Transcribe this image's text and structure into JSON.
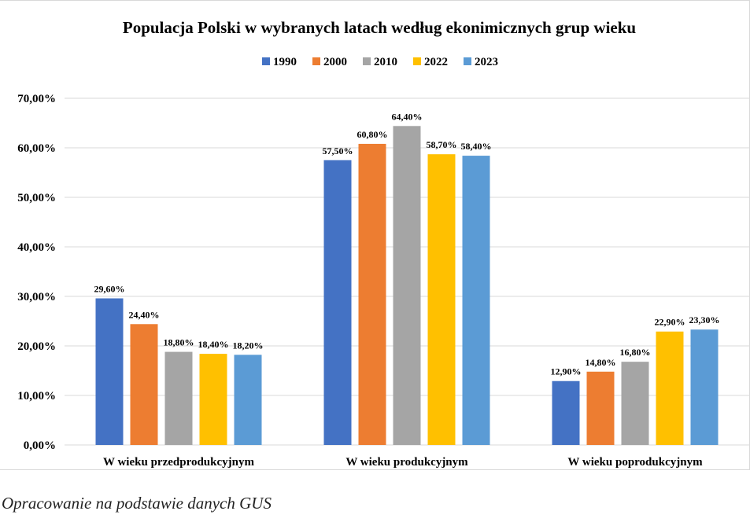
{
  "chart_data": {
    "type": "bar",
    "title": "Populacja Polski w wybranych latach według ekonimicznych grup wieku",
    "categories": [
      "W wieku przedprodukcyjnym",
      "W wieku produkcyjnym",
      "W wieku poprodukcyjnym"
    ],
    "series": [
      {
        "name": "1990",
        "color": "#4472C4",
        "values": [
          29.6,
          57.5,
          12.9
        ],
        "labels": [
          "29,60%",
          "57,50%",
          "12,90%"
        ]
      },
      {
        "name": "2000",
        "color": "#ED7D31",
        "values": [
          24.4,
          60.8,
          14.8
        ],
        "labels": [
          "24,40%",
          "60,80%",
          "14,80%"
        ]
      },
      {
        "name": "2010",
        "color": "#A5A5A5",
        "values": [
          18.8,
          64.4,
          16.8
        ],
        "labels": [
          "18,80%",
          "64,40%",
          "16,80%"
        ]
      },
      {
        "name": "2022",
        "color": "#FFC000",
        "values": [
          18.4,
          58.7,
          22.9
        ],
        "labels": [
          "18,40%",
          "58,70%",
          "22,90%"
        ]
      },
      {
        "name": "2023",
        "color": "#5B9BD5",
        "values": [
          18.2,
          58.4,
          23.3
        ],
        "labels": [
          "18,20%",
          "58,40%",
          "23,30%"
        ]
      }
    ],
    "ylim": [
      0,
      70
    ],
    "yticks": [
      0,
      10,
      20,
      30,
      40,
      50,
      60,
      70
    ],
    "ytick_labels": [
      "0,00%",
      "10,00%",
      "20,00%",
      "30,00%",
      "40,00%",
      "50,00%",
      "60,00%",
      "70,00%"
    ],
    "grid": true,
    "legend_position": "top-center",
    "xlabel": "",
    "ylabel": ""
  },
  "source_note": "Opracowanie na podstawie danych GUS"
}
